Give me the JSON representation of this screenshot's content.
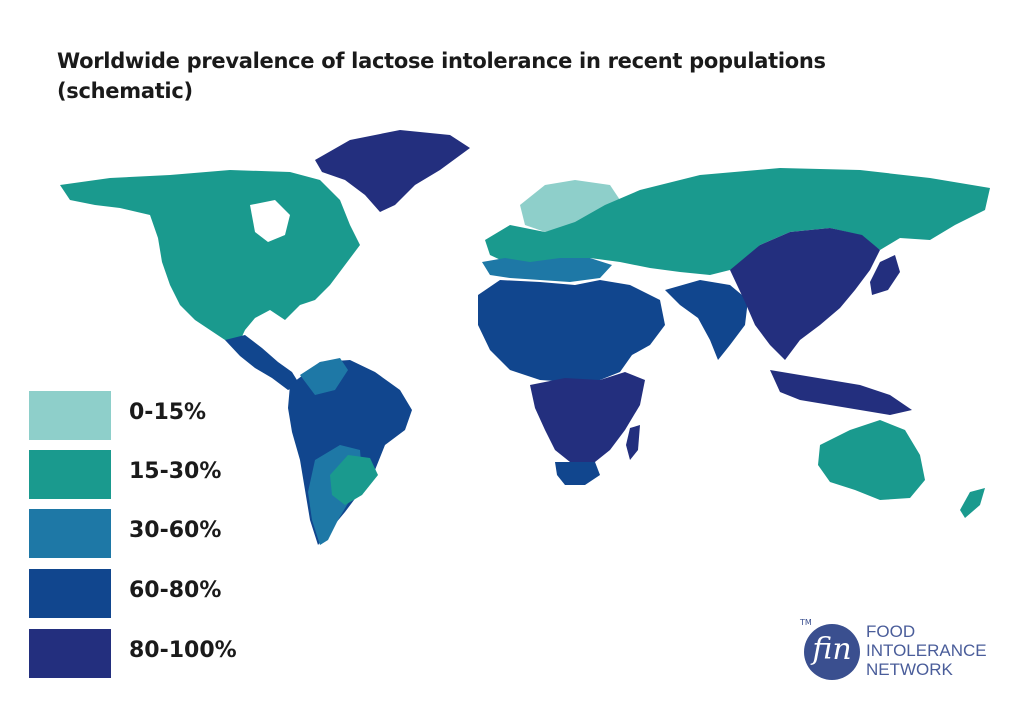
{
  "title": {
    "line1": "Worldwide prevalence of lactose intolerance in recent populations",
    "line2": "(schematic)"
  },
  "legend": [
    {
      "label": "0-15%",
      "color": "#8ecfca"
    },
    {
      "label": "15-30%",
      "color": "#1a9a8e"
    },
    {
      "label": "30-60%",
      "color": "#1e78a6"
    },
    {
      "label": "60-80%",
      "color": "#11468e"
    },
    {
      "label": "80-100%",
      "color": "#232f7e"
    }
  ],
  "regions": [
    {
      "name": "north-america",
      "category": "15-30%"
    },
    {
      "name": "greenland",
      "category": "80-100%"
    },
    {
      "name": "central-america",
      "category": "60-80%"
    },
    {
      "name": "south-america-north",
      "category": "30-60%"
    },
    {
      "name": "south-america",
      "category": "60-80%"
    },
    {
      "name": "southern-cone",
      "category": "30-60%"
    },
    {
      "name": "southern-brazil",
      "category": "15-30%"
    },
    {
      "name": "northern-europe",
      "category": "0-15%"
    },
    {
      "name": "europe-russia",
      "category": "15-30%"
    },
    {
      "name": "mediterranean",
      "category": "30-60%"
    },
    {
      "name": "north-africa-middle-east",
      "category": "60-80%"
    },
    {
      "name": "sub-saharan-africa",
      "category": "80-100%"
    },
    {
      "name": "southern-africa",
      "category": "60-80%"
    },
    {
      "name": "south-asia",
      "category": "60-80%"
    },
    {
      "name": "east-asia",
      "category": "80-100%"
    },
    {
      "name": "southeast-asia",
      "category": "80-100%"
    },
    {
      "name": "australia",
      "category": "15-30%"
    }
  ],
  "logo": {
    "mark": "fin",
    "tm": "TM",
    "line1": "FOOD",
    "line2": "INTOLERANCE",
    "line3": "NETWORK"
  }
}
